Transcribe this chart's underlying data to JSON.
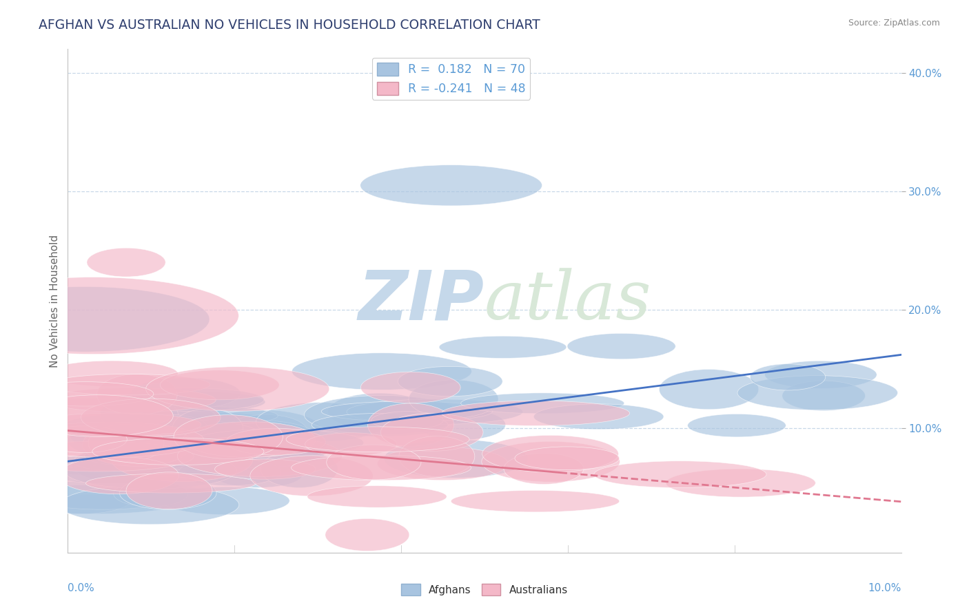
{
  "title": "AFGHAN VS AUSTRALIAN NO VEHICLES IN HOUSEHOLD CORRELATION CHART",
  "source": "Source: ZipAtlas.com",
  "ylabel": "No Vehicles in Household",
  "x_range": [
    0.0,
    0.1
  ],
  "y_range": [
    -0.005,
    0.42
  ],
  "afghan_R": 0.182,
  "afghan_N": 70,
  "australian_R": -0.241,
  "australian_N": 48,
  "blue_color": "#a8c4e0",
  "pink_color": "#f4b8c8",
  "blue_line_color": "#4472c4",
  "pink_line_color": "#e07890",
  "watermark_color": "#dce8f0",
  "background_color": "#ffffff",
  "grid_color": "#c8d8e8",
  "title_color": "#2f3f6f",
  "source_color": "#888888",
  "axis_label_color": "#666666",
  "tick_color": "#5b9bd5",
  "afghan_line_y0": 0.072,
  "afghan_line_y1": 0.162,
  "aus_line_y0": 0.098,
  "aus_line_y1": 0.038,
  "aus_line_solid_end": 0.06
}
